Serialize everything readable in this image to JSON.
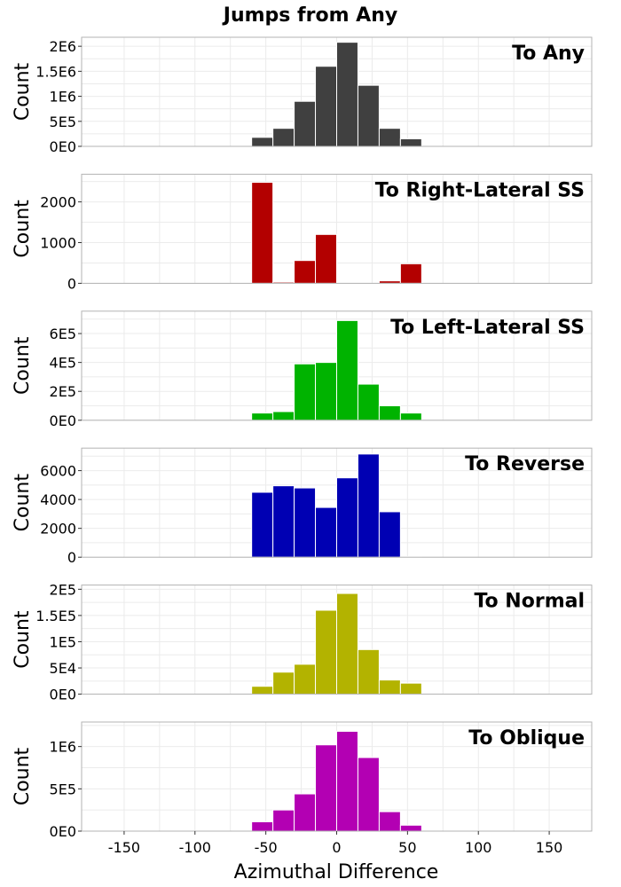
{
  "figure": {
    "title": "Jumps from Any",
    "xlabel": "Azimuthal Difference"
  },
  "chart_data": [
    {
      "type": "bar",
      "title": "To Any",
      "ylabel": "Count",
      "color": "#404040",
      "bin_centers": [
        -52.5,
        -37.5,
        -22.5,
        -7.5,
        7.5,
        22.5,
        37.5,
        52.5
      ],
      "values": [
        180000,
        360000,
        900000,
        1600000,
        2080000,
        1220000,
        360000,
        150000
      ],
      "xlim": [
        -180,
        180
      ],
      "ylim": [
        0,
        2180000
      ],
      "xticks": [
        -150,
        -100,
        -50,
        0,
        50,
        100,
        150
      ],
      "yticks": [
        0,
        500000,
        1000000,
        1500000,
        2000000
      ],
      "ytick_labels": [
        "0E0",
        "5E5",
        "1E6",
        "1.5E6",
        "2E6"
      ],
      "grid": true
    },
    {
      "type": "bar",
      "title": "To Right-Lateral SS",
      "ylabel": "Count",
      "color": "#b30000",
      "bin_centers": [
        -52.5,
        -37.5,
        -22.5,
        -7.5,
        7.5,
        22.5,
        37.5,
        52.5
      ],
      "values": [
        2480,
        30,
        560,
        1200,
        0,
        0,
        60,
        480
      ],
      "xlim": [
        -180,
        180
      ],
      "ylim": [
        0,
        2680
      ],
      "xticks": [
        -150,
        -100,
        -50,
        0,
        50,
        100,
        150
      ],
      "yticks": [
        0,
        1000,
        2000
      ],
      "ytick_labels": [
        "0",
        "1000",
        "2000"
      ],
      "grid": true
    },
    {
      "type": "bar",
      "title": "To Left-Lateral SS",
      "ylabel": "Count",
      "color": "#00b300",
      "bin_centers": [
        -52.5,
        -37.5,
        -22.5,
        -7.5,
        7.5,
        22.5,
        37.5,
        52.5
      ],
      "values": [
        50000,
        60000,
        390000,
        400000,
        690000,
        250000,
        100000,
        50000
      ],
      "xlim": [
        -180,
        180
      ],
      "ylim": [
        0,
        755000
      ],
      "xticks": [
        -150,
        -100,
        -50,
        0,
        50,
        100,
        150
      ],
      "yticks": [
        0,
        200000,
        400000,
        600000
      ],
      "ytick_labels": [
        "0E0",
        "2E5",
        "4E5",
        "6E5"
      ],
      "grid": true
    },
    {
      "type": "bar",
      "title": "To Reverse",
      "ylabel": "Count",
      "color": "#0000b3",
      "bin_centers": [
        -52.5,
        -37.5,
        -22.5,
        -7.5,
        7.5,
        22.5,
        37.5,
        52.5
      ],
      "values": [
        4500,
        4950,
        4800,
        3450,
        5500,
        7150,
        3150,
        50
      ],
      "xlim": [
        -180,
        180
      ],
      "ylim": [
        0,
        7560
      ],
      "xticks": [
        -150,
        -100,
        -50,
        0,
        50,
        100,
        150
      ],
      "yticks": [
        0,
        2000,
        4000,
        6000
      ],
      "ytick_labels": [
        "0",
        "2000",
        "4000",
        "6000"
      ],
      "grid": true
    },
    {
      "type": "bar",
      "title": "To Normal",
      "ylabel": "Count",
      "color": "#b3b300",
      "bin_centers": [
        -52.5,
        -37.5,
        -22.5,
        -7.5,
        7.5,
        22.5,
        37.5,
        52.5
      ],
      "values": [
        15000,
        42000,
        57000,
        160000,
        192000,
        85000,
        27000,
        21000
      ],
      "xlim": [
        -180,
        180
      ],
      "ylim": [
        0,
        208000
      ],
      "xticks": [
        -150,
        -100,
        -50,
        0,
        50,
        100,
        150
      ],
      "yticks": [
        0,
        50000,
        100000,
        150000,
        200000
      ],
      "ytick_labels": [
        "0E0",
        "5E4",
        "1E5",
        "1.5E5",
        "2E5"
      ],
      "grid": true
    },
    {
      "type": "bar",
      "title": "To Oblique",
      "ylabel": "Count",
      "color": "#b300b3",
      "bin_centers": [
        -52.5,
        -37.5,
        -22.5,
        -7.5,
        7.5,
        22.5,
        37.5,
        52.5
      ],
      "values": [
        110000,
        250000,
        440000,
        1020000,
        1180000,
        870000,
        230000,
        70000
      ],
      "xlim": [
        -180,
        180
      ],
      "ylim": [
        0,
        1290000
      ],
      "xticks": [
        -150,
        -100,
        -50,
        0,
        50,
        100,
        150
      ],
      "yticks": [
        0,
        500000,
        1000000
      ],
      "ytick_labels": [
        "0E0",
        "5E5",
        "1E6"
      ],
      "grid": true
    }
  ]
}
